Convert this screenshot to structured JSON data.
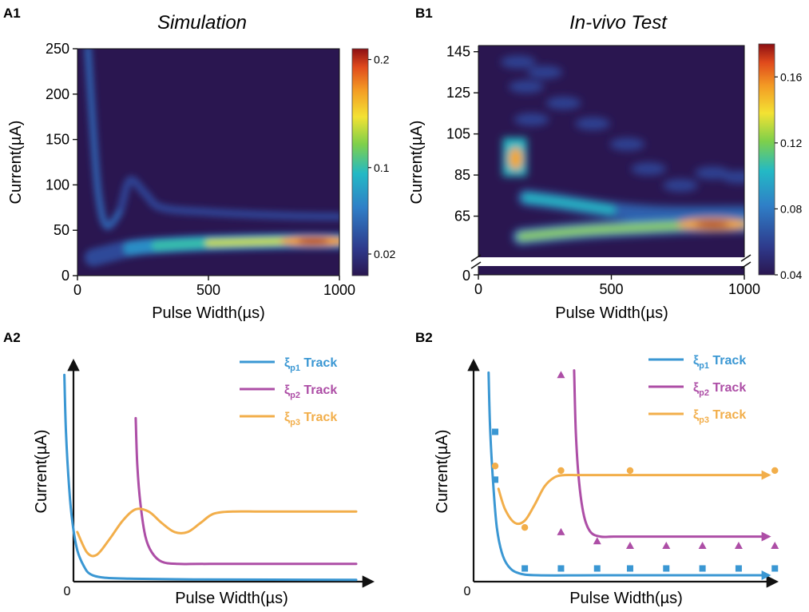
{
  "chart_data": [
    {
      "id": "A1",
      "panel_label": "A1",
      "type": "heatmap",
      "title": "Simulation",
      "xlabel": "Pulse Width(µs)",
      "ylabel": "Current(µA)",
      "xlim": [
        0,
        1000
      ],
      "ylim": [
        0,
        250
      ],
      "xticks": [
        0,
        500,
        1000
      ],
      "yticks": [
        0,
        50,
        100,
        150,
        200,
        250
      ],
      "colorbar": {
        "ticks": [
          0.02,
          0.1,
          0.2
        ],
        "tick_labels": [
          "0.02",
          "0.1",
          "0.2"
        ],
        "range": [
          0.0,
          0.21
        ]
      },
      "features": {
        "ridge_branch_1": [
          [
            40,
            250
          ],
          [
            60,
            160
          ],
          [
            80,
            90
          ],
          [
            110,
            55
          ],
          [
            160,
            70
          ],
          [
            200,
            105
          ],
          [
            260,
            90
          ],
          [
            320,
            75
          ],
          [
            500,
            70
          ],
          [
            800,
            66
          ],
          [
            1000,
            65
          ]
        ],
        "ridge_branch_2": [
          [
            60,
            20
          ],
          [
            200,
            30
          ],
          [
            300,
            33
          ],
          [
            500,
            36
          ],
          [
            800,
            38
          ],
          [
            1000,
            38
          ]
        ],
        "hotspot": {
          "x": 900,
          "y": 38,
          "value": 0.2
        }
      }
    },
    {
      "id": "B1",
      "panel_label": "B1",
      "type": "heatmap",
      "title": "In-vivo Test",
      "xlabel": "Pulse Width(µs)",
      "ylabel": "Current(µA)",
      "xlim": [
        0,
        1000
      ],
      "ylim": [
        45,
        148
      ],
      "xticks": [
        0,
        500,
        1000
      ],
      "yticks": [
        65,
        85,
        105,
        125,
        145
      ],
      "broken_axis_tick": 0,
      "colorbar": {
        "ticks": [
          0.04,
          0.08,
          0.12,
          0.16
        ],
        "tick_labels": [
          "0.04",
          "0.08",
          "0.12",
          "0.16"
        ],
        "range": [
          0.04,
          0.18
        ]
      },
      "features": {
        "band_low": [
          [
            160,
            55
          ],
          [
            400,
            58
          ],
          [
            700,
            60
          ],
          [
            900,
            61
          ],
          [
            1000,
            61
          ]
        ],
        "band_mid": [
          [
            180,
            74
          ],
          [
            300,
            72
          ],
          [
            500,
            68
          ],
          [
            700,
            66
          ],
          [
            1000,
            66
          ]
        ],
        "hotspot_left": {
          "x": 140,
          "y": 93,
          "value": 0.17
        },
        "hotspot_right": {
          "x": 880,
          "y": 61,
          "value": 0.17
        }
      }
    },
    {
      "id": "A2",
      "panel_label": "A2",
      "type": "line",
      "xlabel": "Pulse Width(µs)",
      "ylabel": "Current(µA)",
      "origin_label": "0",
      "xlim": [
        0,
        100
      ],
      "ylim": [
        0,
        100
      ],
      "series": [
        {
          "name": "ξ",
          "sub": "p1",
          "suffix": " Track",
          "color": "#3a97d3",
          "x": [
            10,
            10.5,
            11.5,
            12.5,
            14,
            16,
            18,
            22,
            30,
            50,
            100
          ],
          "y": [
            95,
            70,
            45,
            30,
            18,
            11,
            7.5,
            6,
            5.5,
            5.2,
            5
          ]
        },
        {
          "name": "ξ",
          "sub": "p2",
          "suffix": " Track",
          "color": "#ad4ea6",
          "x": [
            32,
            32.5,
            33.5,
            35,
            37,
            40,
            45,
            55,
            100
          ],
          "y": [
            76,
            55,
            38,
            24,
            17,
            13,
            12,
            12,
            12
          ]
        },
        {
          "name": "ξ",
          "sub": "p3",
          "suffix": " Track",
          "color": "#f2ae4a",
          "x": [
            14,
            17,
            20,
            24,
            28,
            32,
            36,
            40,
            44,
            48,
            52,
            56,
            62,
            70,
            80,
            100
          ],
          "y": [
            26,
            17,
            16,
            23,
            31,
            36,
            35,
            30,
            26,
            26,
            30,
            34,
            35,
            35,
            35,
            35
          ]
        }
      ]
    },
    {
      "id": "B2",
      "panel_label": "B2",
      "type": "line",
      "xlabel": "Pulse Width(µs)",
      "ylabel": "Current(µA)",
      "origin_label": "0",
      "xlim": [
        0,
        100
      ],
      "ylim": [
        0,
        100
      ],
      "series": [
        {
          "name": "ξ",
          "sub": "p1",
          "suffix": " Track",
          "color": "#3a97d3",
          "x": [
            15,
            15.5,
            16.5,
            17.5,
            19,
            21,
            24,
            30,
            50,
            100
          ],
          "y": [
            96,
            70,
            45,
            28,
            17,
            11,
            8,
            7,
            7,
            7
          ],
          "points": {
            "marker": "square",
            "x": [
              17,
              17,
              26,
              37,
              48,
              58,
              69,
              80,
              91,
              102
            ],
            "y": [
              70,
              49,
              10,
              10,
              10,
              10,
              10,
              10,
              10,
              10
            ]
          }
        },
        {
          "name": "ξ",
          "sub": "p2",
          "suffix": " Track",
          "color": "#ad4ea6",
          "x": [
            41,
            41.5,
            42.5,
            44,
            46,
            49,
            53,
            60,
            100
          ],
          "y": [
            97,
            70,
            48,
            33,
            26,
            24,
            24,
            24,
            24
          ],
          "points": {
            "marker": "triangle",
            "x": [
              37,
              37,
              48,
              58,
              69,
              80,
              91,
              102
            ],
            "y": [
              95,
              26,
              22,
              20,
              20,
              20,
              20,
              20
            ]
          }
        },
        {
          "name": "ξ",
          "sub": "p3",
          "suffix": " Track",
          "color": "#f2ae4a",
          "x": [
            18,
            20,
            23,
            26,
            29,
            32,
            35,
            38,
            42,
            48,
            60,
            80,
            100
          ],
          "y": [
            45,
            36,
            30,
            31,
            38,
            46,
            50,
            51,
            51,
            51,
            51,
            51,
            51
          ],
          "points": {
            "marker": "circle",
            "x": [
              17,
              26,
              37,
              58,
              102
            ],
            "y": [
              55,
              28,
              53,
              53,
              53
            ]
          }
        }
      ]
    }
  ]
}
